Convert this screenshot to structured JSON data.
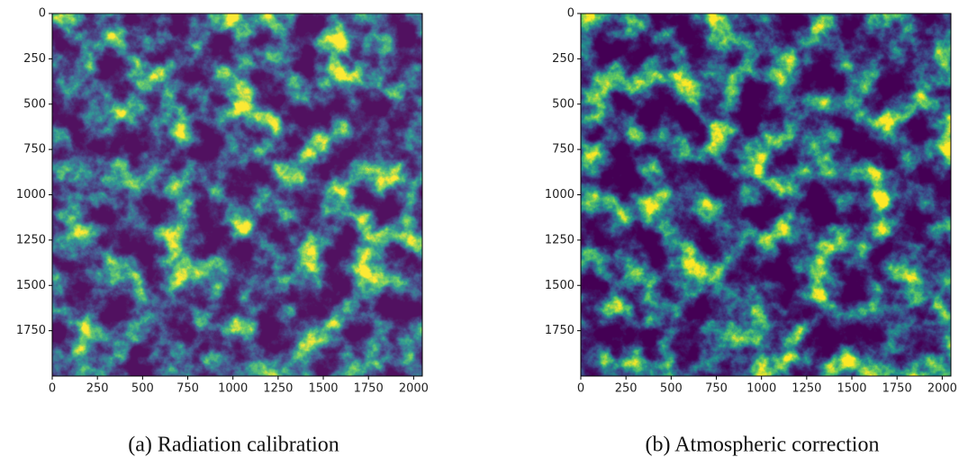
{
  "chart_data": [
    {
      "type": "image",
      "caption": "(a) Radiation calibration",
      "xlim": [
        0,
        2048
      ],
      "ylim": [
        2000,
        0
      ],
      "xticks": [
        0,
        250,
        500,
        750,
        1000,
        1250,
        1500,
        1750,
        2000
      ],
      "yticks": [
        0,
        250,
        500,
        750,
        1000,
        1250,
        1500,
        1750
      ]
    },
    {
      "type": "image",
      "caption": "(b) Atmospheric correction",
      "xlim": [
        0,
        2048
      ],
      "ylim": [
        2000,
        0
      ],
      "xticks": [
        0,
        250,
        500,
        750,
        1000,
        1250,
        1500,
        1750,
        2000
      ],
      "yticks": [
        0,
        250,
        500,
        750,
        1000,
        1250,
        1500,
        1750
      ]
    }
  ]
}
